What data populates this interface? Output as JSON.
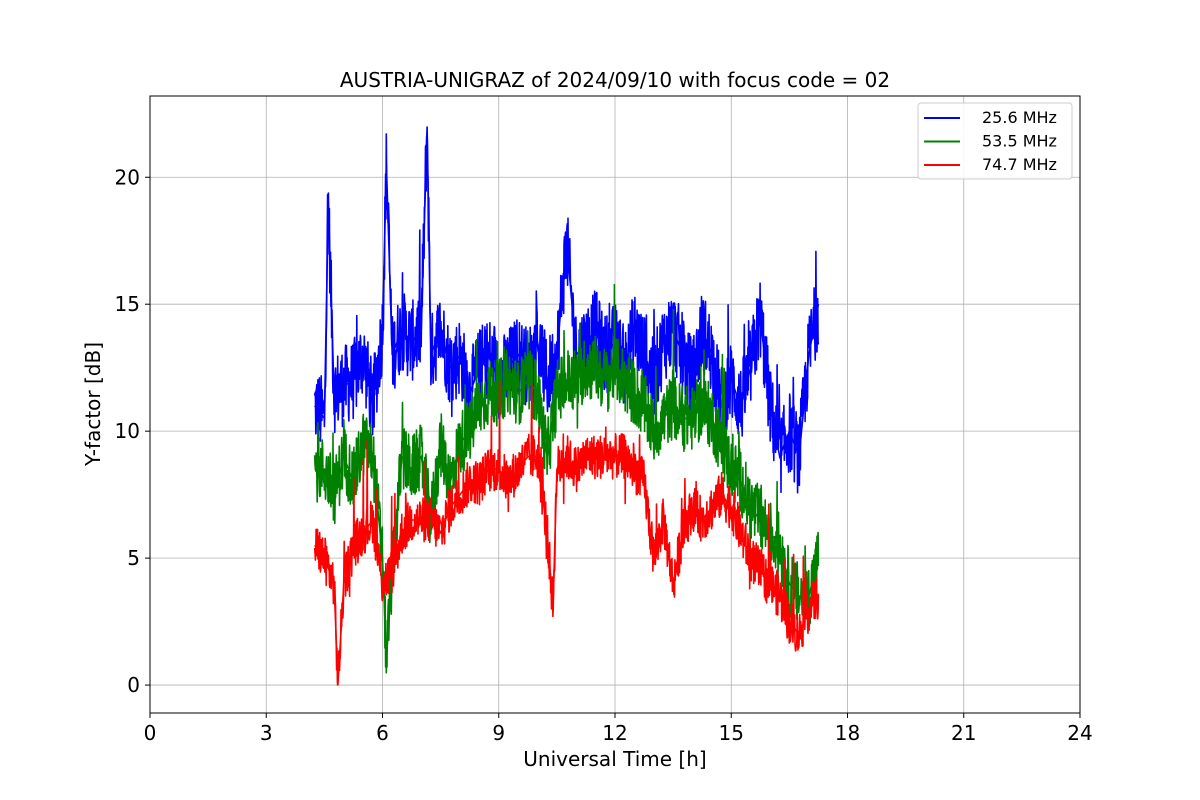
{
  "chart_data": {
    "type": "line",
    "title": "AUSTRIA-UNIGRAZ of 2024/09/10 with focus code = 02",
    "xlabel": "Universal Time [h]",
    "ylabel": "Y-factor [dB]",
    "xlim": [
      0,
      24
    ],
    "ylim": [
      -1.1,
      23.2
    ],
    "xticks": [
      0,
      3,
      6,
      9,
      12,
      15,
      18,
      21,
      24
    ],
    "yticks": [
      0,
      5,
      10,
      15,
      20
    ],
    "grid": true,
    "legend_position": "top-right",
    "series": [
      {
        "name": "25.6 MHz",
        "color": "#0000ff",
        "x": [
          4.25,
          4.5,
          4.6,
          4.75,
          5.0,
          5.25,
          5.5,
          5.75,
          6.0,
          6.1,
          6.25,
          6.5,
          6.75,
          7.0,
          7.15,
          7.25,
          7.5,
          7.75,
          8.0,
          8.25,
          8.5,
          8.75,
          9.0,
          9.25,
          9.5,
          9.75,
          10.0,
          10.25,
          10.5,
          10.75,
          11.0,
          11.25,
          11.5,
          11.75,
          12.0,
          12.25,
          12.5,
          12.75,
          13.0,
          13.25,
          13.5,
          13.75,
          14.0,
          14.25,
          14.5,
          14.75,
          15.0,
          15.25,
          15.5,
          15.75,
          16.0,
          16.25,
          16.5,
          16.75,
          17.0,
          17.25
        ],
        "y": [
          11.0,
          10.5,
          19.0,
          11.5,
          11.8,
          12.0,
          13.0,
          11.0,
          14.0,
          20.5,
          13.0,
          14.0,
          13.5,
          14.0,
          22.0,
          13.0,
          14.0,
          12.5,
          13.0,
          11.5,
          12.5,
          13.0,
          12.0,
          12.5,
          13.0,
          12.5,
          13.5,
          12.0,
          13.0,
          17.5,
          13.0,
          13.5,
          14.0,
          13.0,
          13.5,
          12.5,
          14.0,
          13.0,
          12.0,
          13.5,
          14.0,
          13.0,
          12.0,
          14.0,
          13.0,
          11.0,
          12.0,
          11.0,
          12.5,
          14.5,
          11.0,
          9.0,
          10.0,
          9.0,
          13.0,
          15.0
        ]
      },
      {
        "name": "53.5 MHz",
        "color": "#008000",
        "x": [
          4.25,
          4.5,
          4.75,
          5.0,
          5.25,
          5.5,
          5.75,
          6.0,
          6.1,
          6.25,
          6.5,
          6.75,
          7.0,
          7.25,
          7.5,
          7.75,
          8.0,
          8.25,
          8.5,
          8.75,
          9.0,
          9.25,
          9.5,
          9.75,
          10.0,
          10.25,
          10.5,
          10.75,
          11.0,
          11.25,
          11.5,
          11.75,
          12.0,
          12.25,
          12.5,
          12.75,
          13.0,
          13.25,
          13.5,
          13.75,
          14.0,
          14.25,
          14.5,
          14.75,
          15.0,
          15.25,
          15.5,
          15.75,
          16.0,
          16.25,
          16.5,
          16.75,
          17.0,
          17.25
        ],
        "y": [
          8.5,
          8.5,
          7.5,
          9.0,
          8.0,
          9.5,
          9.0,
          5.0,
          1.0,
          4.5,
          9.0,
          8.5,
          9.0,
          6.5,
          9.5,
          8.0,
          9.5,
          10.0,
          11.0,
          11.5,
          11.5,
          12.0,
          11.5,
          12.0,
          11.5,
          9.0,
          11.5,
          12.0,
          12.0,
          12.5,
          12.5,
          12.0,
          12.5,
          12.0,
          11.5,
          11.0,
          10.0,
          10.5,
          11.0,
          10.5,
          10.5,
          11.0,
          10.5,
          9.5,
          8.5,
          8.0,
          7.0,
          6.5,
          6.0,
          5.5,
          4.0,
          3.5,
          3.5,
          5.0
        ]
      },
      {
        "name": "74.7 MHz",
        "color": "#ff0000",
        "x": [
          4.25,
          4.5,
          4.75,
          4.85,
          5.0,
          5.25,
          5.5,
          5.75,
          6.0,
          6.25,
          6.5,
          6.75,
          7.0,
          7.25,
          7.5,
          7.75,
          8.0,
          8.25,
          8.5,
          8.75,
          9.0,
          9.25,
          9.5,
          9.75,
          10.0,
          10.25,
          10.4,
          10.5,
          10.75,
          11.0,
          11.25,
          11.5,
          11.75,
          12.0,
          12.25,
          12.5,
          12.75,
          13.0,
          13.25,
          13.5,
          13.75,
          14.0,
          14.25,
          14.5,
          14.75,
          15.0,
          15.25,
          15.5,
          15.75,
          16.0,
          16.25,
          16.5,
          16.75,
          17.0,
          17.25
        ],
        "y": [
          5.5,
          5.0,
          4.0,
          0.0,
          4.0,
          5.5,
          6.0,
          6.5,
          4.0,
          4.5,
          6.0,
          6.5,
          6.5,
          6.5,
          6.0,
          7.0,
          7.5,
          8.0,
          8.0,
          8.5,
          8.5,
          8.0,
          8.5,
          9.0,
          9.0,
          6.0,
          3.0,
          8.5,
          9.0,
          8.5,
          9.0,
          9.0,
          9.0,
          9.0,
          9.0,
          8.5,
          8.0,
          5.0,
          6.5,
          4.0,
          6.0,
          7.0,
          6.5,
          7.0,
          7.5,
          7.0,
          6.0,
          5.0,
          4.5,
          4.0,
          3.5,
          2.5,
          2.0,
          3.0,
          3.5
        ]
      }
    ]
  }
}
